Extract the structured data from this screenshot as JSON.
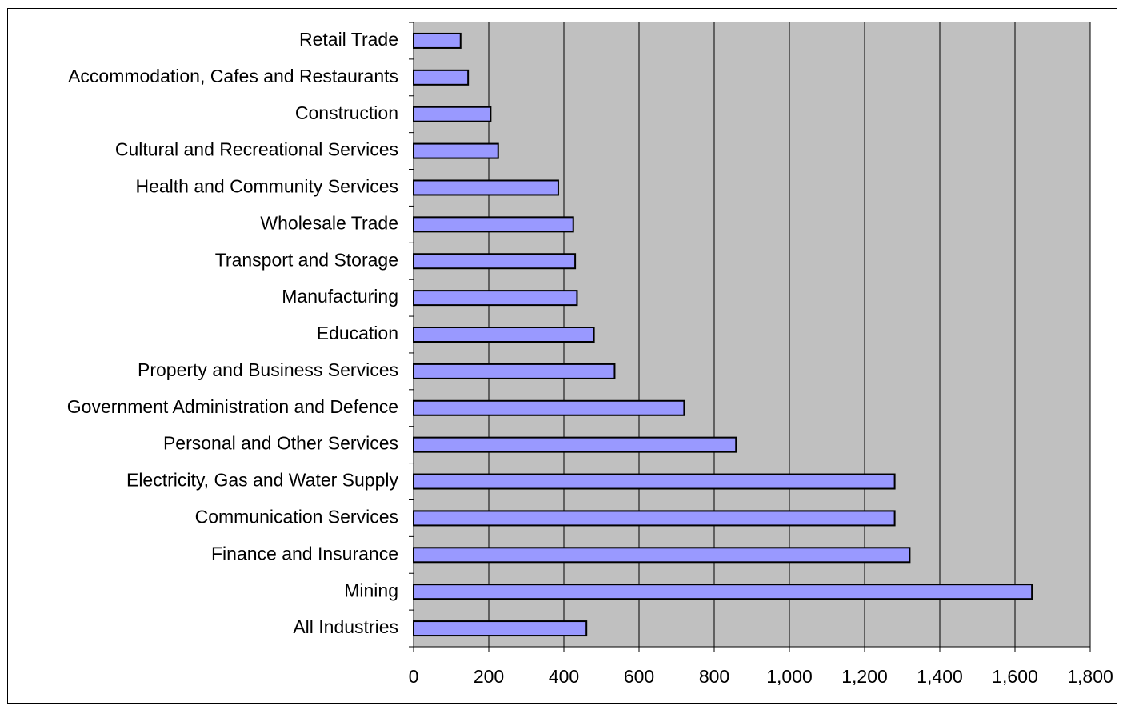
{
  "chart_data": {
    "type": "bar",
    "orientation": "horizontal",
    "title": "",
    "xlabel": "",
    "ylabel": "",
    "categories": [
      "Retail Trade",
      "Accommodation, Cafes and Restaurants",
      "Construction",
      "Cultural and Recreational Services",
      "Health and Community Services",
      "Wholesale Trade",
      "Transport and Storage",
      "Manufacturing",
      "Education",
      "Property and Business Services",
      "Government Administration and Defence",
      "Personal and Other Services",
      "Electricity, Gas and Water Supply",
      "Communication Services",
      "Finance and Insurance",
      "Mining",
      "All Industries"
    ],
    "values": [
      125,
      145,
      205,
      225,
      385,
      425,
      430,
      435,
      480,
      535,
      720,
      858,
      1280,
      1280,
      1320,
      1645,
      460
    ],
    "xlim": [
      0,
      1800
    ],
    "xticks": [
      0,
      200,
      400,
      600,
      800,
      1000,
      1200,
      1400,
      1600,
      1800
    ],
    "xtick_labels": [
      "0",
      "200",
      "400",
      "600",
      "800",
      "1,000",
      "1,200",
      "1,400",
      "1,600",
      "1,800"
    ],
    "grid": "vertical",
    "legend": "none",
    "colors": {
      "bar_fill": "#9999ff",
      "bar_stroke": "#000000",
      "plot_background": "#c0c0c0",
      "gridline": "#000000"
    }
  }
}
